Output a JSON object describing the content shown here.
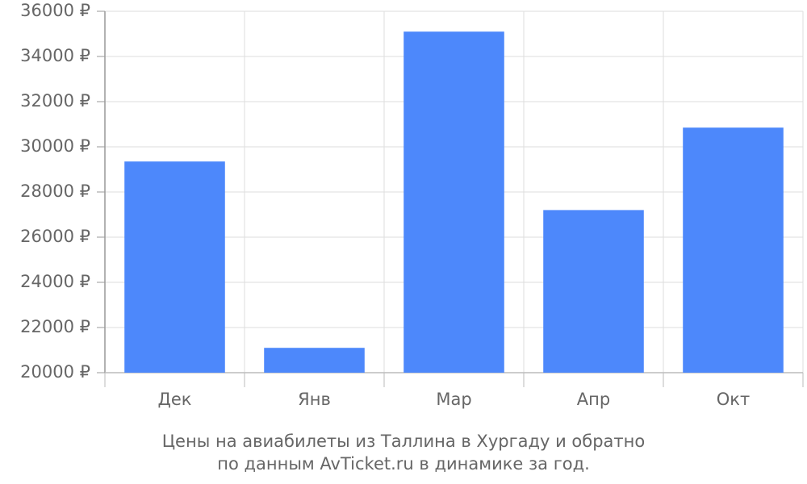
{
  "chart_data": {
    "type": "bar",
    "title_lines": [
      "Цены на авиабилеты из Таллина в Хургаду и обратно",
      "по данным AvTicket.ru в динамике за год."
    ],
    "categories": [
      "Дек",
      "Янв",
      "Мар",
      "Апр",
      "Окт"
    ],
    "values": [
      29350,
      21100,
      35100,
      27200,
      30850
    ],
    "color": "#4d88fb",
    "ylim": [
      20000,
      36000
    ],
    "yticks": [
      {
        "value": 20000,
        "label": "20000 ₽"
      },
      {
        "value": 22000,
        "label": "22000 ₽"
      },
      {
        "value": 24000,
        "label": "24000 ₽"
      },
      {
        "value": 26000,
        "label": "26000 ₽"
      },
      {
        "value": 28000,
        "label": "28000 ₽"
      },
      {
        "value": 30000,
        "label": "30000 ₽"
      },
      {
        "value": 32000,
        "label": "32000 ₽"
      },
      {
        "value": 34000,
        "label": "34000 ₽"
      },
      {
        "value": 36000,
        "label": "36000 ₽"
      }
    ],
    "grid": true
  }
}
